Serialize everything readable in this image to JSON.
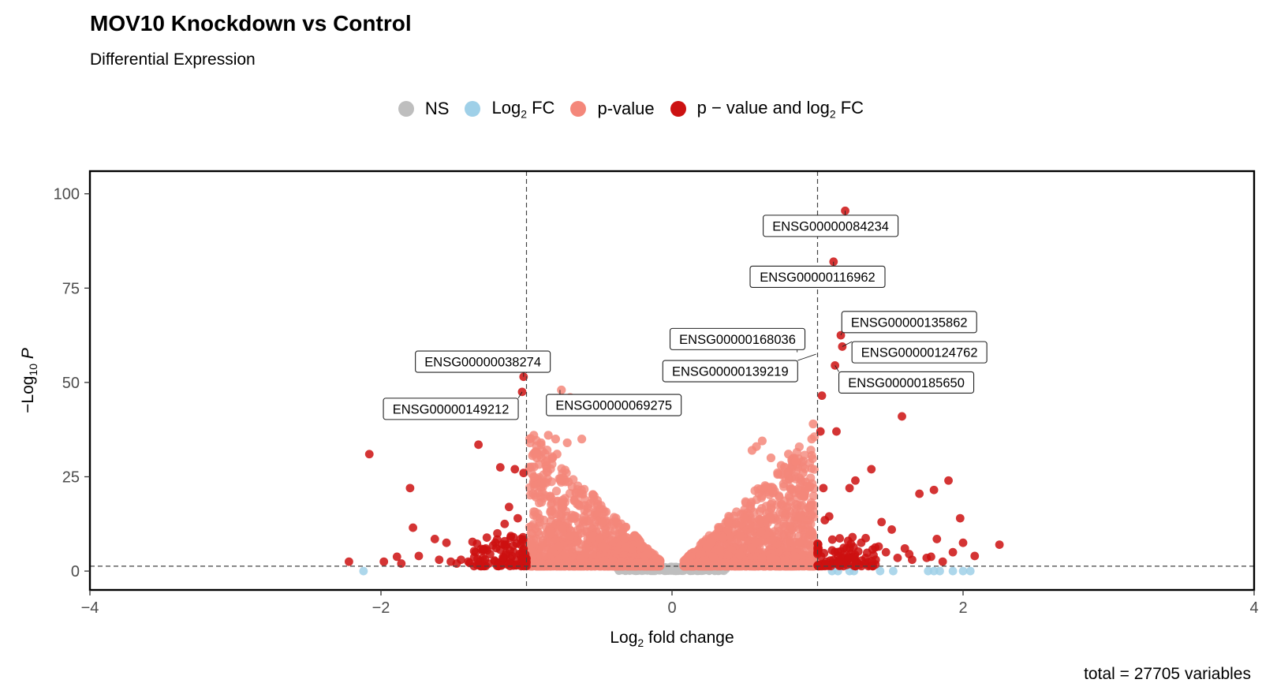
{
  "title": "MOV10 Knockdown vs Control",
  "subtitle": "Differential Expression",
  "caption": "total = 27705 variables",
  "legend": [
    {
      "id": "ns",
      "label": "NS",
      "color": "#bebebe"
    },
    {
      "id": "fc",
      "label": "Log2 FC",
      "color": "#9fd0e8"
    },
    {
      "id": "p",
      "label": "p-value",
      "color": "#f4877a"
    },
    {
      "id": "pfc",
      "label": "p − value and log2 FC",
      "color": "#cc1111"
    }
  ],
  "chart_data": {
    "type": "scatter",
    "title": "MOV10 Knockdown vs Control",
    "subtitle": "Differential Expression",
    "xlabel": "Log2 fold change",
    "ylabel": "−Log10 P",
    "xlim": [
      -4,
      4
    ],
    "ylim": [
      -5,
      106
    ],
    "xticks": [
      -4,
      -2,
      0,
      2,
      4
    ],
    "yticks": [
      0,
      25,
      50,
      75,
      100
    ],
    "fc_cutoff": 1,
    "p_cutoff_log10": 1.3,
    "grid": false,
    "legend_position": "top",
    "labeled_genes": [
      {
        "gene": "ENSG00000084234",
        "x": 1.19,
        "y": 95.5
      },
      {
        "gene": "ENSG00000116962",
        "x": 1.11,
        "y": 82.0
      },
      {
        "gene": "ENSG00000135862",
        "x": 1.16,
        "y": 62.5
      },
      {
        "gene": "ENSG00000168036",
        "x": 0.86,
        "y": 58.0
      },
      {
        "gene": "ENSG00000124762",
        "x": 1.17,
        "y": 59.5
      },
      {
        "gene": "ENSG00000139219",
        "x": 0.99,
        "y": 57.5
      },
      {
        "gene": "ENSG00000185650",
        "x": 1.12,
        "y": 54.5
      },
      {
        "gene": "ENSG00000038274",
        "x": -1.02,
        "y": 51.5
      },
      {
        "gene": "ENSG00000149212",
        "x": -1.03,
        "y": 47.5
      },
      {
        "gene": "ENSG00000069275",
        "x": -0.77,
        "y": 48.0
      }
    ],
    "series": [
      {
        "name": "p − value and log2 FC",
        "points": [
          [
            -2.22,
            2.5
          ],
          [
            -2.08,
            31.0
          ],
          [
            -1.98,
            2.5
          ],
          [
            -1.89,
            3.8
          ],
          [
            -1.86,
            2.0
          ],
          [
            -1.8,
            22.0
          ],
          [
            -1.78,
            11.5
          ],
          [
            -1.74,
            4.0
          ],
          [
            -1.63,
            8.5
          ],
          [
            -1.6,
            3.0
          ],
          [
            -1.55,
            7.5
          ],
          [
            -1.52,
            2.5
          ],
          [
            -1.45,
            3.0
          ],
          [
            -1.4,
            2.5
          ],
          [
            -1.33,
            33.5
          ],
          [
            -1.28,
            6.0
          ],
          [
            -1.25,
            4.5
          ],
          [
            -1.22,
            2.8
          ],
          [
            -1.2,
            10.0
          ],
          [
            -1.18,
            27.5
          ],
          [
            -1.15,
            7.0
          ],
          [
            -1.12,
            17.0
          ],
          [
            -1.1,
            4.0
          ],
          [
            -1.08,
            27.0
          ],
          [
            -1.06,
            14.0
          ],
          [
            -1.04,
            8.5
          ],
          [
            -1.03,
            47.5
          ],
          [
            -1.02,
            51.5
          ],
          [
            -1.02,
            26.0
          ],
          [
            -1.15,
            12.5
          ],
          [
            -1.3,
            3.5
          ],
          [
            -1.35,
            5.0
          ],
          [
            -1.48,
            2.0
          ],
          [
            -1.26,
            2.0
          ],
          [
            -1.11,
            2.2
          ],
          [
            -1.07,
            3.0
          ],
          [
            -1.16,
            3.2
          ],
          [
            -1.23,
            6.8
          ],
          [
            -1.09,
            9.0
          ],
          [
            -1.14,
            4.8
          ],
          [
            1.02,
            37.0
          ],
          [
            1.03,
            46.5
          ],
          [
            1.04,
            22.0
          ],
          [
            1.05,
            13.5
          ],
          [
            1.08,
            14.5
          ],
          [
            1.1,
            5.5
          ],
          [
            1.11,
            82.0
          ],
          [
            1.12,
            54.5
          ],
          [
            1.13,
            37.0
          ],
          [
            1.15,
            3.0
          ],
          [
            1.16,
            62.5
          ],
          [
            1.17,
            59.5
          ],
          [
            1.19,
            95.5
          ],
          [
            1.2,
            6.0
          ],
          [
            1.22,
            22.0
          ],
          [
            1.24,
            9.0
          ],
          [
            1.26,
            24.0
          ],
          [
            1.3,
            7.5
          ],
          [
            1.33,
            3.5
          ],
          [
            1.37,
            27.0
          ],
          [
            1.4,
            3.0
          ],
          [
            1.44,
            13.0
          ],
          [
            1.47,
            5.0
          ],
          [
            1.51,
            11.0
          ],
          [
            1.55,
            3.5
          ],
          [
            1.58,
            41.0
          ],
          [
            1.6,
            6.0
          ],
          [
            1.65,
            3.0
          ],
          [
            1.7,
            20.5
          ],
          [
            1.75,
            3.5
          ],
          [
            1.8,
            21.5
          ],
          [
            1.82,
            8.5
          ],
          [
            1.9,
            24.0
          ],
          [
            1.93,
            5.0
          ],
          [
            1.98,
            14.0
          ],
          [
            2.0,
            7.5
          ],
          [
            2.08,
            4.0
          ],
          [
            2.25,
            7.0
          ],
          [
            1.06,
            2.5
          ],
          [
            1.14,
            4.0
          ],
          [
            1.18,
            2.2
          ],
          [
            1.28,
            5.2
          ],
          [
            1.35,
            2.4
          ],
          [
            1.42,
            6.5
          ],
          [
            1.63,
            4.5
          ],
          [
            1.78,
            3.8
          ],
          [
            1.86,
            2.5
          ],
          [
            1.21,
            8.0
          ]
        ]
      },
      {
        "name": "Log2 FC",
        "points": [
          [
            -2.12,
            0.0
          ],
          [
            1.1,
            0.0
          ],
          [
            1.14,
            0.0
          ],
          [
            1.22,
            0.0
          ],
          [
            1.25,
            0.0
          ],
          [
            1.43,
            0.0
          ],
          [
            1.52,
            0.0
          ],
          [
            1.76,
            0.0
          ],
          [
            1.8,
            0.0
          ],
          [
            1.84,
            0.0
          ],
          [
            1.93,
            0.0
          ],
          [
            2.0,
            0.0
          ],
          [
            2.05,
            0.0
          ]
        ]
      }
    ]
  }
}
